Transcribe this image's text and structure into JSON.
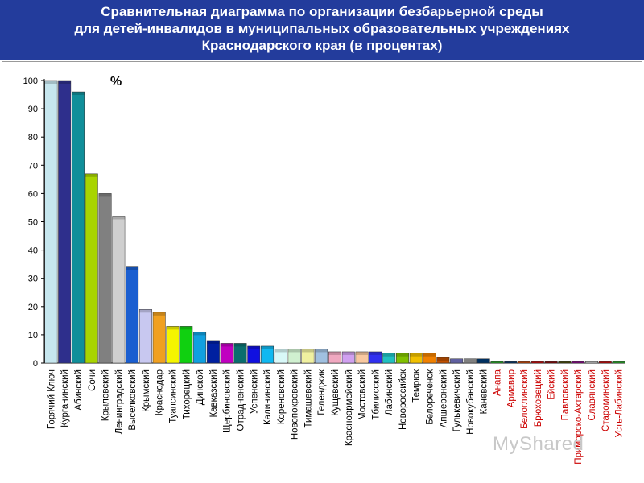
{
  "header": {
    "line1": "Сравнительная диаграмма по организации безбарьерной среды",
    "line2": "для детей-инвалидов в муниципальных образовательных учреждениях",
    "line3": "Краснодарского края (в процентах)"
  },
  "watermark": "MyShared",
  "colors": {
    "header_bg": "#233c9c",
    "header_text": "#ffffff",
    "red_labels": "#cc0000"
  },
  "chart_data": {
    "type": "bar",
    "ylabel": "%",
    "ylim": [
      0,
      100
    ],
    "yticks": [
      0,
      10,
      20,
      30,
      40,
      50,
      60,
      70,
      80,
      90,
      100
    ],
    "grid": false,
    "categories": [
      "Горячий Ключ",
      "Курганинский",
      "Абинский",
      "Сочи",
      "Крыловский",
      "Ленинградский",
      "Выселковский",
      "Крымский",
      "Краснодар",
      "Туапсинский",
      "Тихорецкий",
      "Динской",
      "Кавказский",
      "Щербиновский",
      "Отрадненский",
      "Успенский",
      "Калининский",
      "Кореновский",
      "Новопокровский",
      "Тимашевский",
      "Геленджик",
      "Кущевский",
      "Красноармейский",
      "Мостовский",
      "Тбилисский",
      "Лабинский",
      "Новороссийск",
      "Темрюк",
      "Белореченск",
      "Апшеронский",
      "Гулькевичский",
      "Новокубанский",
      "Каневский",
      "Анапа",
      "Армавир",
      "Белоглинский",
      "Брюховецкий",
      "Ейский",
      "Павловский",
      "Приморско-Ахтарский",
      "Славянский",
      "Староминский",
      "Усть-Лабинский"
    ],
    "values": [
      100,
      100,
      96,
      67,
      60,
      52,
      34,
      19,
      18,
      13,
      13,
      11,
      8,
      7,
      7,
      6,
      6,
      5,
      5,
      5,
      5,
      4,
      4,
      4,
      4,
      3.5,
      3.5,
      3.5,
      3.5,
      2,
      1.5,
      1.5,
      1.5,
      0.5,
      0.5,
      0.5,
      0.5,
      0.5,
      0.5,
      0.5,
      0.5,
      0.5,
      0.5
    ],
    "bar_colors": [
      "#c6e6ee",
      "#2e2f8c",
      "#108f9a",
      "#a8d400",
      "#808080",
      "#cfcfcf",
      "#1a5ed0",
      "#c8c8f0",
      "#f0a020",
      "#f5f500",
      "#10d010",
      "#10a0e0",
      "#0020a0",
      "#c000c0",
      "#0a6e6e",
      "#1010e0",
      "#10b8f0",
      "#d8f8f8",
      "#d0f0d0",
      "#f0f0a0",
      "#a0c0e0",
      "#f0a8c0",
      "#d0a0f0",
      "#f8c8a0",
      "#3030f0",
      "#20c0c0",
      "#80c000",
      "#f0c000",
      "#f08000",
      "#c05000",
      "#6060a0",
      "#808080",
      "#003060",
      "#20a020",
      "#003060",
      "#c04000",
      "#c00000",
      "#800000",
      "#404000",
      "#800080",
      "#c0c0c0",
      "#c00000",
      "#20a020"
    ],
    "red_label_from_index": 33
  }
}
